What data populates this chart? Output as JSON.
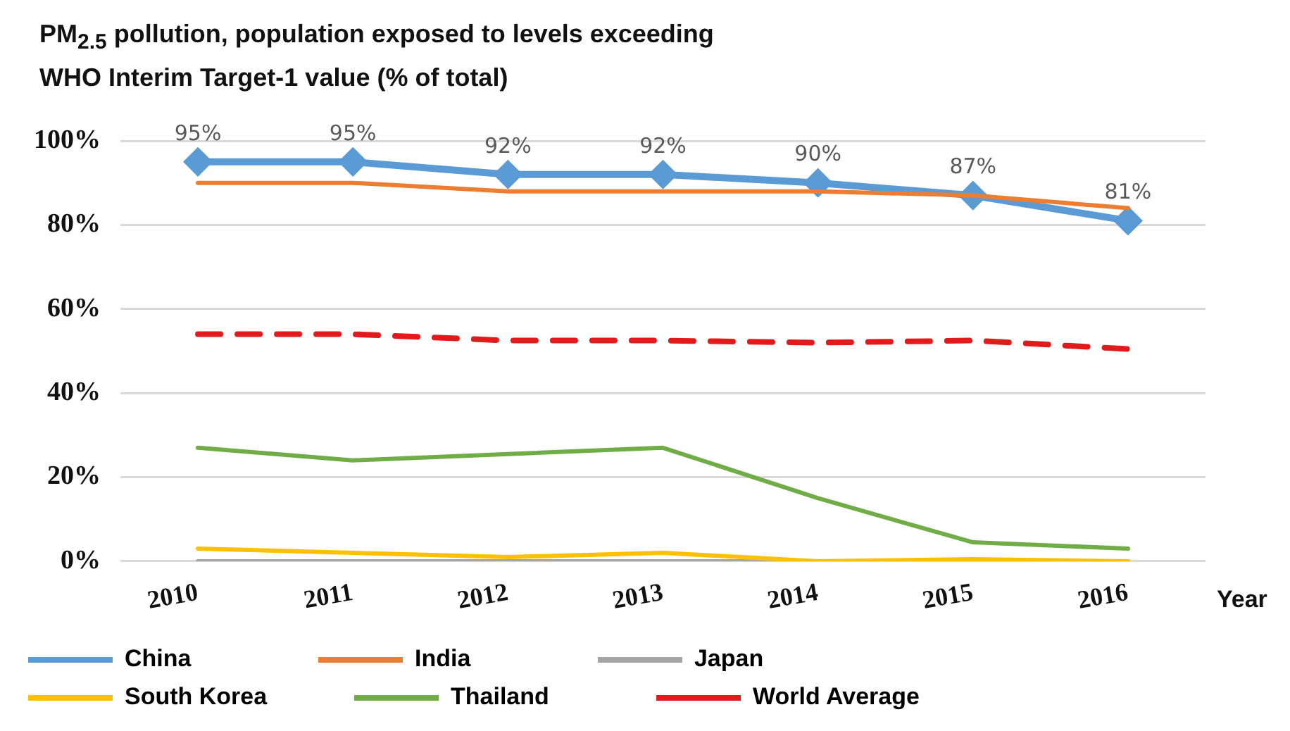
{
  "chart_data": {
    "type": "line",
    "title": "PM$_{2.5}$ pollution, population  exposed to levels exceeding WHO Interim Target-1 value (% of total)",
    "xlabel": "Year",
    "categories": [
      "2010",
      "2011",
      "2012",
      "2013",
      "2014",
      "2015",
      "2016"
    ],
    "ylim": [
      0,
      100
    ],
    "yticks": [
      {
        "value": 0,
        "label": "0%"
      },
      {
        "value": 20,
        "label": "20%"
      },
      {
        "value": 40,
        "label": "40%"
      },
      {
        "value": 60,
        "label": "60%"
      },
      {
        "value": 80,
        "label": "80%"
      },
      {
        "value": 100,
        "label": "100%"
      }
    ],
    "grid": "y",
    "legend": "bottom",
    "series": [
      {
        "name": "China",
        "color": "#5b9bd5",
        "marker": "diamond",
        "values": [
          95,
          95,
          92,
          92,
          90,
          87,
          81
        ],
        "value_labels": [
          "95%",
          "95%",
          "92%",
          "92%",
          "90%",
          "87%",
          "81%"
        ]
      },
      {
        "name": "India",
        "color": "#ed7d31",
        "marker": "none",
        "values": [
          90,
          90,
          88,
          88,
          88,
          87,
          84
        ]
      },
      {
        "name": "Japan",
        "color": "#a5a5a5",
        "marker": "none",
        "values": [
          0,
          0,
          0,
          0,
          0,
          0,
          0
        ]
      },
      {
        "name": "South Korea",
        "color": "#ffc000",
        "marker": "none",
        "values": [
          3,
          2,
          1,
          2,
          0,
          0.5,
          0
        ]
      },
      {
        "name": "Thailand",
        "color": "#70ad47",
        "marker": "none",
        "values": [
          27,
          24,
          25.5,
          27,
          15,
          4.5,
          3
        ]
      },
      {
        "name": "World Average",
        "color": "#e31a1c",
        "marker": "none",
        "line_style": "dashed",
        "values": [
          54,
          54,
          52.5,
          52.5,
          52,
          52.5,
          50.5
        ]
      }
    ]
  }
}
